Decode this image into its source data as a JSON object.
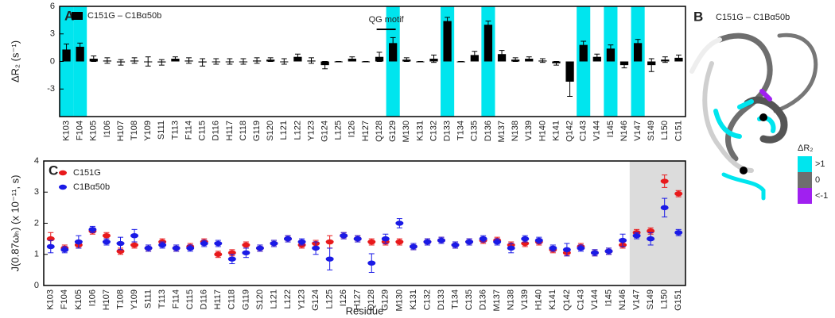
{
  "chart_data": [
    {
      "type": "bar",
      "panel_label": "A",
      "ylabel": "ΔR₂ (s⁻¹)",
      "categories": [
        "K103",
        "F104",
        "K105",
        "I106",
        "H107",
        "T108",
        "Y109",
        "S111",
        "T113",
        "F114",
        "C115",
        "D116",
        "H117",
        "C118",
        "G119",
        "S120",
        "L121",
        "L122",
        "Y123",
        "G124",
        "L125",
        "I126",
        "H127",
        "Q128",
        "G129",
        "M130",
        "K131",
        "C132",
        "D133",
        "T134",
        "C135",
        "D136",
        "M137",
        "N138",
        "V139",
        "H140",
        "K141",
        "Q142",
        "C143",
        "V144",
        "I145",
        "N146",
        "V147",
        "S149",
        "L150",
        "C151"
      ],
      "series": [
        {
          "name": "C151G – C1Bα50b",
          "color": "#000000",
          "values": [
            1.3,
            1.6,
            0.3,
            0.1,
            -0.1,
            0.1,
            0.0,
            -0.1,
            0.3,
            0.1,
            -0.1,
            0.0,
            0.0,
            0.0,
            0.1,
            0.2,
            0.0,
            0.5,
            0.1,
            -0.4,
            0.0,
            0.3,
            0.0,
            0.5,
            2.0,
            0.2,
            0.0,
            0.3,
            4.4,
            0.0,
            0.7,
            4.0,
            0.8,
            0.2,
            0.3,
            0.1,
            -0.2,
            -2.2,
            1.8,
            0.5,
            1.4,
            -0.4,
            2.0,
            -0.4,
            0.2,
            0.4
          ],
          "errors": [
            0.6,
            0.4,
            0.3,
            0.3,
            0.3,
            0.3,
            0.5,
            0.3,
            0.2,
            0.3,
            0.4,
            0.3,
            0.3,
            0.3,
            0.3,
            0.2,
            0.3,
            0.3,
            0.3,
            0.4,
            0.0,
            0.2,
            0.0,
            0.5,
            0.6,
            0.2,
            0.0,
            0.4,
            0.4,
            0.0,
            0.4,
            0.4,
            0.4,
            0.2,
            0.2,
            0.2,
            0.2,
            1.6,
            0.4,
            0.3,
            0.4,
            0.3,
            0.4,
            0.7,
            0.3,
            0.3
          ]
        }
      ],
      "highlight": [
        0,
        1,
        24,
        28,
        31,
        38,
        40,
        42
      ],
      "highlight_color": "#00e5ee",
      "annotation": {
        "text": "QG motif",
        "span": [
          23,
          24
        ]
      },
      "ylim": [
        -6,
        6
      ],
      "yticks": [
        -3,
        0,
        3,
        6
      ]
    },
    {
      "type": "dot",
      "panel_label": "C",
      "ylabel": "J(0.87ωₕ) (x 10⁻¹¹, s)",
      "xlabel": "Residue",
      "categories": [
        "K103",
        "F104",
        "K105",
        "I106",
        "H107",
        "T108",
        "Y109",
        "S111",
        "T113",
        "F114",
        "C115",
        "D116",
        "H117",
        "C118",
        "G119",
        "S120",
        "L121",
        "L122",
        "Y123",
        "G124",
        "L125",
        "I126",
        "H127",
        "Q128",
        "G129",
        "M130",
        "K131",
        "C132",
        "D133",
        "T134",
        "C135",
        "D136",
        "M137",
        "N138",
        "V139",
        "H140",
        "K141",
        "Q142",
        "C143",
        "V144",
        "I145",
        "N146",
        "V147",
        "S149",
        "L150",
        "G151"
      ],
      "series": [
        {
          "name": "C151G",
          "color": "#e8191b",
          "values": [
            1.5,
            1.2,
            1.3,
            1.75,
            1.6,
            1.1,
            1.3,
            1.2,
            1.4,
            1.2,
            1.25,
            1.4,
            1.0,
            1.05,
            1.3,
            1.2,
            1.35,
            1.5,
            1.3,
            1.35,
            1.4,
            1.6,
            1.5,
            1.4,
            1.4,
            1.4,
            1.25,
            1.4,
            1.45,
            1.3,
            1.4,
            1.45,
            1.45,
            1.3,
            1.35,
            1.4,
            1.15,
            1.05,
            1.25,
            1.05,
            1.1,
            1.3,
            1.7,
            1.75,
            3.35,
            2.95
          ],
          "errors": [
            0.2,
            0.1,
            0.1,
            0.1,
            0.1,
            0.1,
            0.1,
            0.1,
            0.1,
            0.1,
            0.1,
            0.1,
            0.1,
            0.1,
            0.1,
            0.1,
            0.1,
            0.1,
            0.1,
            0.1,
            0.2,
            0.1,
            0.1,
            0.1,
            0.1,
            0.1,
            0.1,
            0.1,
            0.1,
            0.1,
            0.1,
            0.1,
            0.1,
            0.1,
            0.1,
            0.1,
            0.1,
            0.1,
            0.1,
            0.1,
            0.1,
            0.1,
            0.1,
            0.1,
            0.2,
            0.1
          ]
        },
        {
          "name": "C1Bα50b",
          "color": "#1a1ae6",
          "values": [
            1.25,
            1.15,
            1.4,
            1.8,
            1.4,
            1.35,
            1.6,
            1.2,
            1.3,
            1.2,
            1.2,
            1.35,
            1.35,
            0.85,
            1.05,
            1.2,
            1.35,
            1.5,
            1.4,
            1.2,
            0.85,
            1.6,
            1.5,
            0.72,
            1.5,
            2.0,
            1.25,
            1.4,
            1.45,
            1.3,
            1.4,
            1.5,
            1.4,
            1.2,
            1.5,
            1.45,
            1.2,
            1.15,
            1.2,
            1.05,
            1.1,
            1.45,
            1.6,
            1.5,
            2.5,
            1.7
          ],
          "errors": [
            0.2,
            0.1,
            0.2,
            0.1,
            0.1,
            0.2,
            0.2,
            0.1,
            0.1,
            0.1,
            0.1,
            0.1,
            0.1,
            0.15,
            0.15,
            0.1,
            0.1,
            0.1,
            0.1,
            0.2,
            0.35,
            0.1,
            0.1,
            0.3,
            0.15,
            0.15,
            0.1,
            0.1,
            0.1,
            0.1,
            0.1,
            0.1,
            0.1,
            0.15,
            0.1,
            0.1,
            0.1,
            0.2,
            0.1,
            0.1,
            0.1,
            0.2,
            0.1,
            0.2,
            0.3,
            0.1
          ]
        }
      ],
      "shaded_from": 42,
      "shade_color": "#dcdcdc",
      "ylim": [
        0,
        4
      ],
      "yticks": [
        0,
        1,
        2,
        3,
        4
      ]
    }
  ],
  "panel_b": {
    "label": "B",
    "title": "C151G – C1Bα50b",
    "legend_title": "ΔR₂",
    "legend": [
      {
        "label": ">1",
        "color": "#00e5ee"
      },
      {
        "label": "0",
        "color": "#6e6e6e"
      },
      {
        "label": "<-1",
        "color": "#a020f0"
      }
    ]
  }
}
